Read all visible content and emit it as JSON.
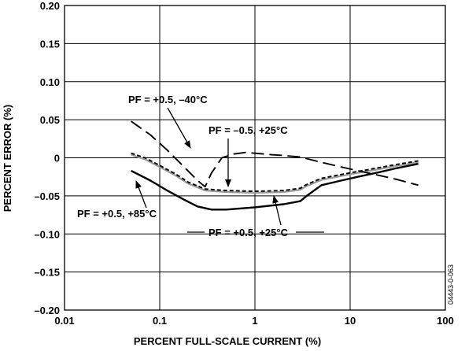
{
  "chart_data": {
    "type": "line",
    "xlabel": "PERCENT FULL-SCALE CURRENT (%)",
    "ylabel": "PERCENT ERROR (%)",
    "x_scale": "log",
    "xlim": [
      0.01,
      100
    ],
    "ylim": [
      -0.2,
      0.2
    ],
    "grid": true,
    "x_tick_labels": [
      "0.01",
      "0.1",
      "1",
      "10",
      "100"
    ],
    "y_tick_labels": [
      "0.20",
      "0.15",
      "0.10",
      "0.05",
      "0",
      "–0.05",
      "–0.10",
      "–0.15",
      "–0.20"
    ],
    "figure_id": "04443-0-063",
    "series": [
      {
        "name": "PF = +0.5, –40°C",
        "style": "long-dash",
        "color": "#000000",
        "x": [
          0.05,
          0.08,
          0.12,
          0.18,
          0.25,
          0.3,
          0.35,
          0.45,
          0.6,
          0.8,
          1,
          1.5,
          2,
          3,
          5,
          8,
          12,
          20,
          30,
          52
        ],
        "y": [
          0.048,
          0.03,
          0.01,
          -0.012,
          -0.03,
          -0.038,
          -0.02,
          0.0,
          0.005,
          0.007,
          0.006,
          0.004,
          0.003,
          0.001,
          -0.006,
          -0.012,
          -0.017,
          -0.023,
          -0.028,
          -0.036
        ]
      },
      {
        "name": "PF = –0.5, +25°C",
        "style": "short-dash",
        "color": "#000000",
        "x": [
          0.05,
          0.07,
          0.1,
          0.15,
          0.2,
          0.3,
          0.5,
          1,
          2,
          3,
          3.5,
          5,
          8,
          12,
          20,
          30,
          52
        ],
        "y": [
          0.006,
          0.0,
          -0.01,
          -0.022,
          -0.032,
          -0.041,
          -0.043,
          -0.044,
          -0.043,
          -0.04,
          -0.035,
          -0.027,
          -0.022,
          -0.018,
          -0.013,
          -0.009,
          -0.004
        ]
      },
      {
        "name": "PF = +0.5, +25°C",
        "style": "solid-gray",
        "color": "#9a9a9a",
        "x": [
          0.05,
          0.07,
          0.1,
          0.15,
          0.2,
          0.3,
          0.5,
          1,
          2,
          3,
          3.5,
          5,
          8,
          12,
          20,
          30,
          52
        ],
        "y": [
          0.004,
          -0.002,
          -0.012,
          -0.024,
          -0.034,
          -0.043,
          -0.045,
          -0.046,
          -0.045,
          -0.042,
          -0.037,
          -0.029,
          -0.024,
          -0.02,
          -0.015,
          -0.011,
          -0.006
        ]
      },
      {
        "name": "PF = +0.5, +85°C",
        "style": "solid",
        "color": "#000000",
        "x": [
          0.05,
          0.08,
          0.12,
          0.18,
          0.25,
          0.35,
          0.5,
          1,
          2,
          3,
          3.5,
          5,
          8,
          12,
          20,
          30,
          52
        ],
        "y": [
          -0.017,
          -0.03,
          -0.043,
          -0.055,
          -0.064,
          -0.068,
          -0.068,
          -0.065,
          -0.061,
          -0.057,
          -0.05,
          -0.036,
          -0.03,
          -0.025,
          -0.019,
          -0.014,
          -0.008
        ]
      }
    ],
    "annotations": [
      {
        "text": "PF = +0.5, –40°C",
        "points_to": "PF = +0.5, –40°C"
      },
      {
        "text": "PF = –0.5, +25°C",
        "points_to": "PF = –0.5, +25°C"
      },
      {
        "text": "PF = +0.5, +85°C",
        "points_to": "PF = +0.5, +85°C"
      },
      {
        "text": "PF = +0.5, +25°C",
        "points_to": "PF = +0.5, +25°C"
      }
    ]
  }
}
